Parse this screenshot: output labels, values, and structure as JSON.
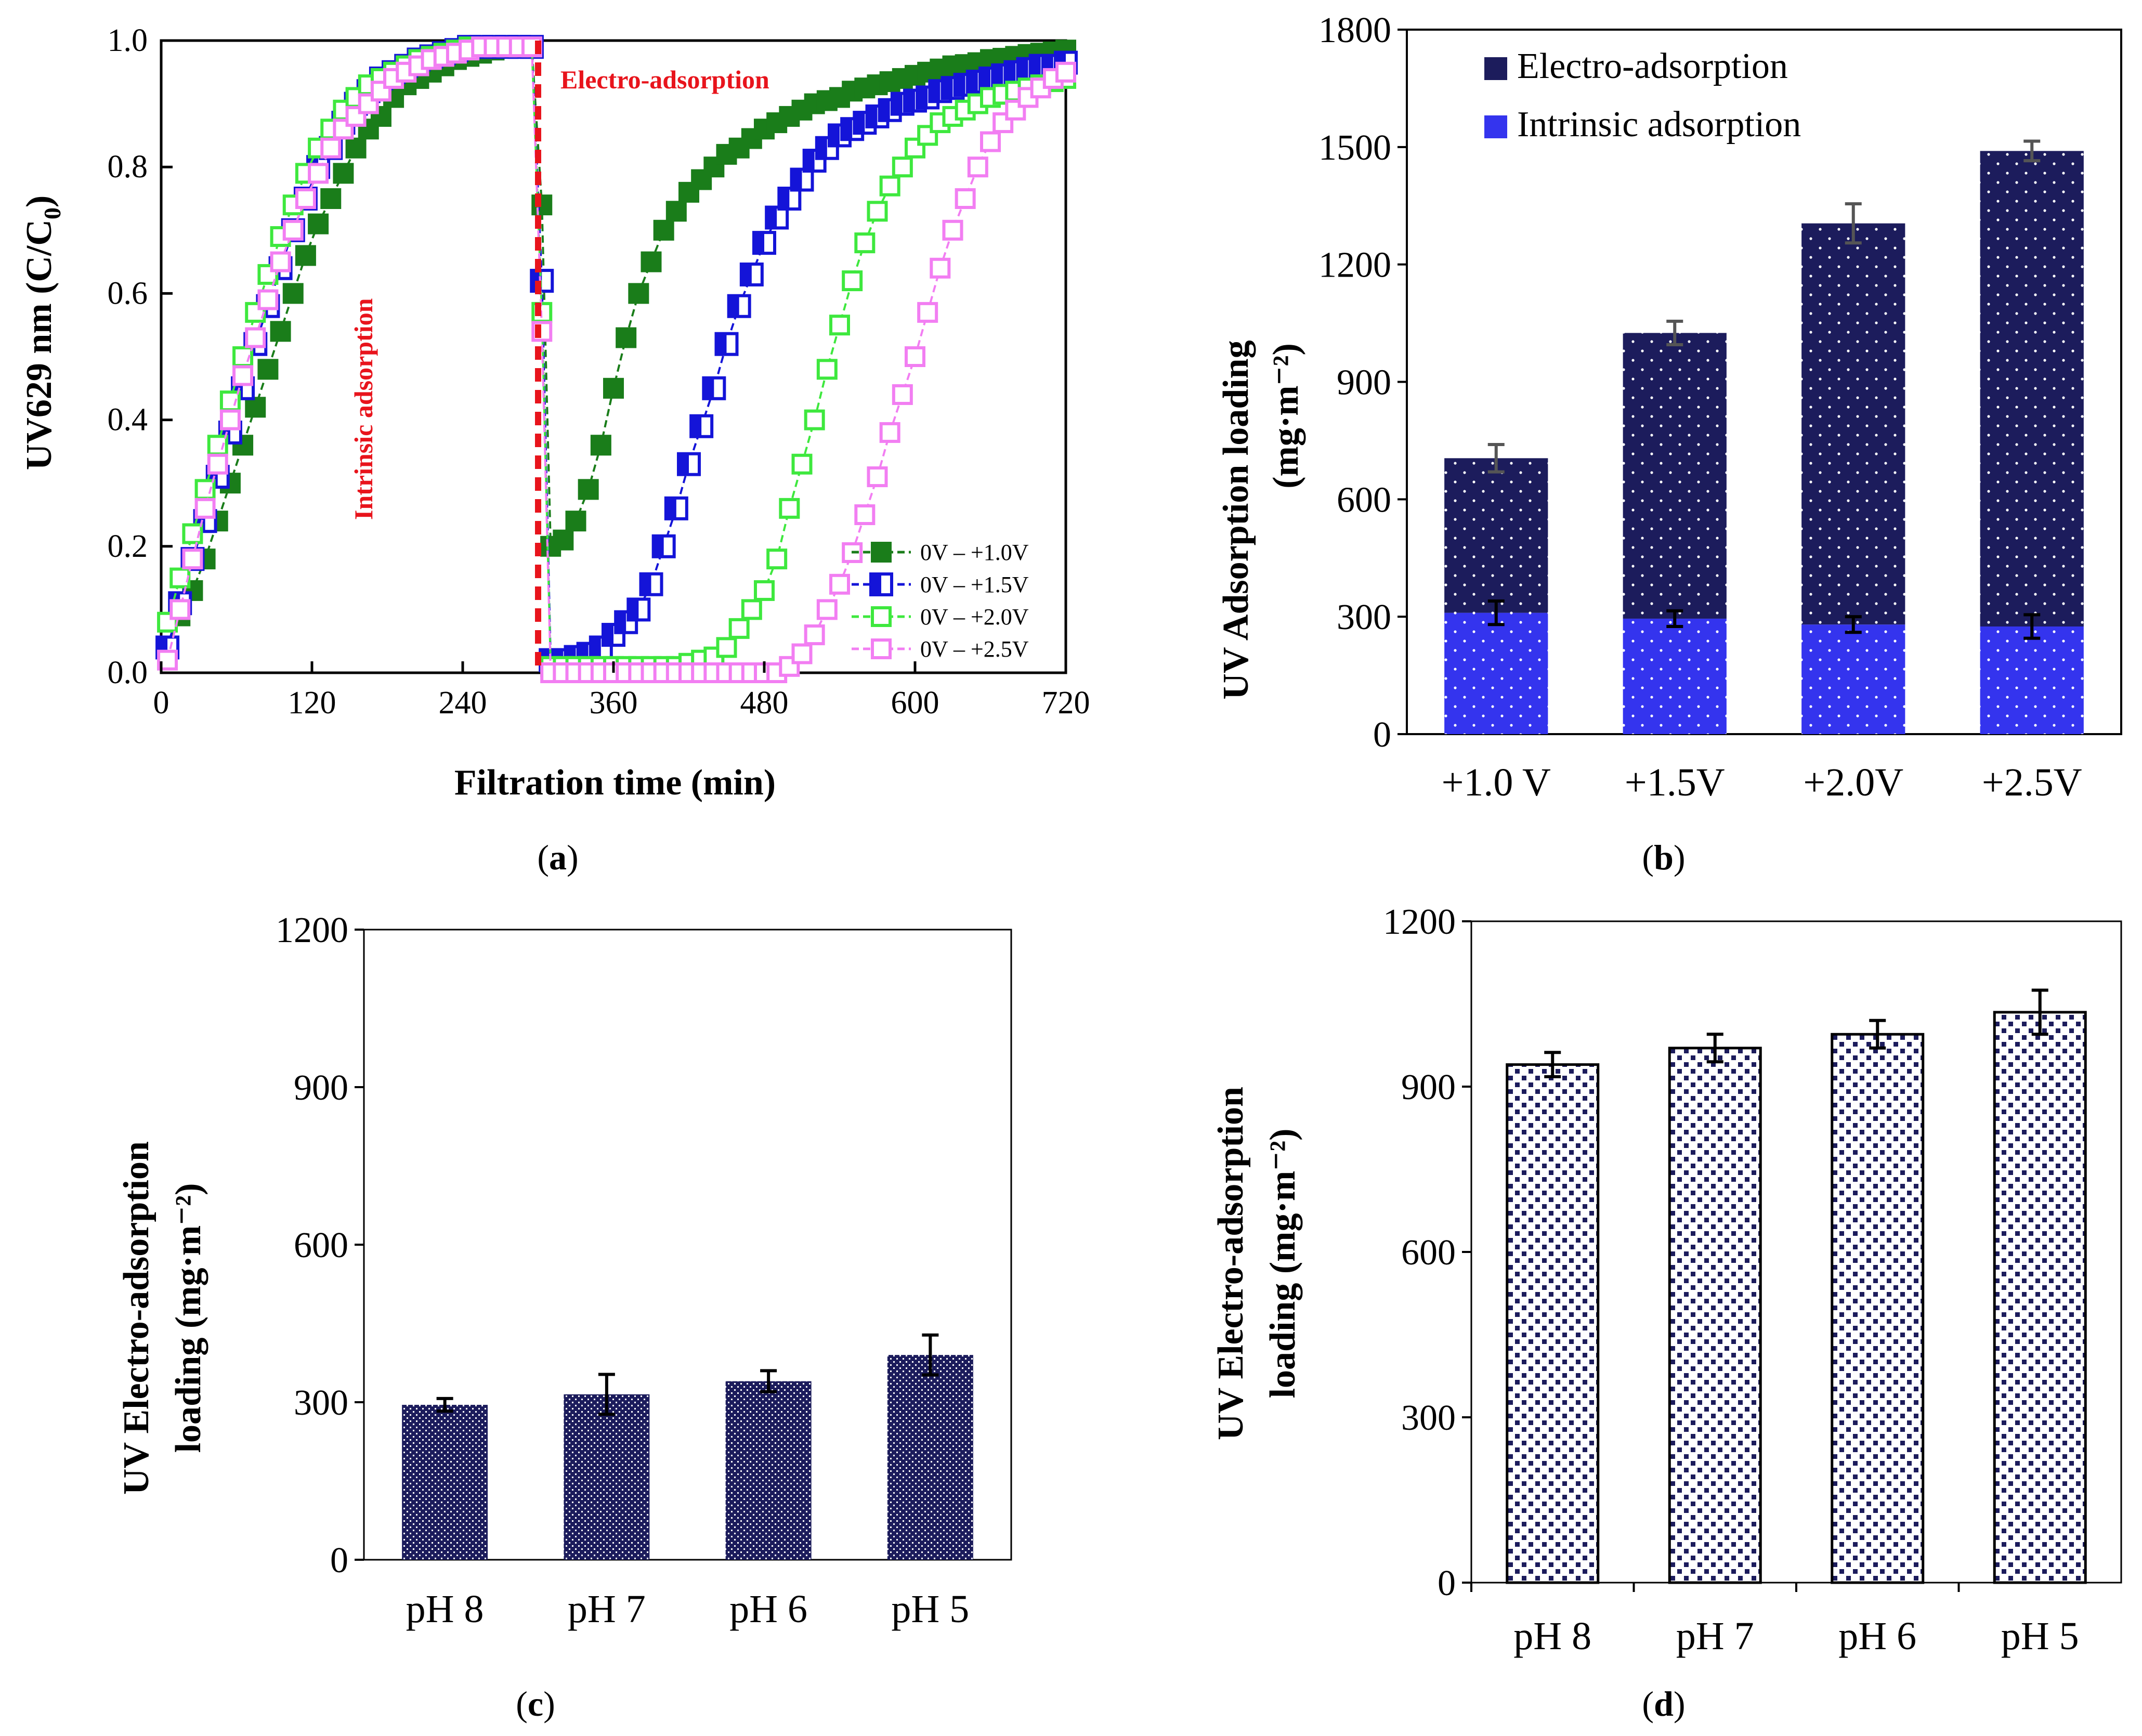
{
  "colors": {
    "dark_green": "#1a7d1a",
    "blue": "#1414d8",
    "light_green": "#3ee83e",
    "pink": "#f27ef2",
    "red_marker": "#e8141c",
    "navy": "#1c1c5c",
    "bright_blue": "#3434ee",
    "black": "#000000"
  },
  "panels": {
    "a": {
      "caption_open": "(",
      "caption_letter": "a",
      "caption_close": ")"
    },
    "b": {
      "caption_open": "(",
      "caption_letter": "b",
      "caption_close": ")"
    },
    "c": {
      "caption_open": "(",
      "caption_letter": "c",
      "caption_close": ")"
    },
    "d": {
      "caption_open": "(",
      "caption_letter": "d",
      "caption_close": ")"
    }
  },
  "chart_data": [
    {
      "id": "a",
      "type": "scatter",
      "xlabel": "Filtration time (min)",
      "ylabel": "UV629 nm (C/C0)",
      "ylabel_parts": {
        "main": "UV629 nm (C/C",
        "sub": "0",
        "close": ")"
      },
      "xlim": [
        0,
        720
      ],
      "ylim": [
        0,
        1.0
      ],
      "xticks": [
        0,
        120,
        240,
        360,
        480,
        600,
        720
      ],
      "xtick_labels": [
        "0",
        "120",
        "240",
        "360",
        "480",
        "600",
        "720"
      ],
      "yticks": [
        0,
        0.2,
        0.4,
        0.6,
        0.8,
        1.0
      ],
      "ytick_labels": [
        "0.0",
        "0.2",
        "0.4",
        "0.6",
        "0.8",
        "1.0"
      ],
      "annotations": {
        "electro": "Electro-adsorption",
        "intrinsic": "Intrinsic adsorption",
        "switch_time": 300
      },
      "legend_position": "bottom-right",
      "series": [
        {
          "name": "0V – +1.0V",
          "color_key": "dark_green",
          "marker": "filled",
          "x": [
            5,
            15,
            25,
            35,
            45,
            55,
            65,
            75,
            85,
            95,
            105,
            115,
            125,
            135,
            145,
            155,
            165,
            175,
            185,
            195,
            205,
            215,
            225,
            235,
            245,
            255,
            265,
            275,
            285,
            295,
            303,
            310,
            320,
            330,
            340,
            350,
            360,
            370,
            380,
            390,
            400,
            410,
            420,
            430,
            440,
            450,
            460,
            470,
            480,
            490,
            500,
            510,
            520,
            530,
            540,
            550,
            560,
            570,
            580,
            590,
            600,
            610,
            620,
            630,
            640,
            650,
            660,
            670,
            680,
            690,
            700,
            710,
            720
          ],
          "y": [
            0.04,
            0.09,
            0.13,
            0.18,
            0.24,
            0.3,
            0.36,
            0.42,
            0.48,
            0.54,
            0.6,
            0.66,
            0.71,
            0.75,
            0.79,
            0.83,
            0.86,
            0.88,
            0.91,
            0.93,
            0.94,
            0.95,
            0.96,
            0.97,
            0.975,
            0.98,
            0.985,
            0.99,
            0.99,
            0.99,
            0.74,
            0.2,
            0.21,
            0.24,
            0.29,
            0.36,
            0.45,
            0.53,
            0.6,
            0.65,
            0.7,
            0.73,
            0.76,
            0.78,
            0.8,
            0.82,
            0.83,
            0.845,
            0.86,
            0.87,
            0.88,
            0.89,
            0.9,
            0.905,
            0.91,
            0.92,
            0.925,
            0.93,
            0.935,
            0.94,
            0.945,
            0.95,
            0.955,
            0.96,
            0.962,
            0.965,
            0.97,
            0.972,
            0.975,
            0.978,
            0.98,
            0.982,
            0.985
          ]
        },
        {
          "name": "0V – +1.5V",
          "color_key": "blue",
          "marker": "half",
          "x": [
            5,
            15,
            25,
            35,
            45,
            55,
            65,
            75,
            85,
            95,
            105,
            115,
            125,
            135,
            145,
            155,
            165,
            175,
            185,
            195,
            205,
            215,
            225,
            235,
            245,
            255,
            265,
            275,
            285,
            295,
            303,
            310,
            320,
            330,
            340,
            350,
            360,
            370,
            380,
            390,
            400,
            410,
            420,
            430,
            440,
            450,
            460,
            470,
            480,
            490,
            500,
            510,
            520,
            530,
            540,
            550,
            560,
            570,
            580,
            590,
            600,
            610,
            620,
            630,
            640,
            650,
            660,
            670,
            680,
            690,
            700,
            710,
            720
          ],
          "y": [
            0.04,
            0.11,
            0.18,
            0.24,
            0.31,
            0.38,
            0.45,
            0.52,
            0.58,
            0.64,
            0.7,
            0.75,
            0.8,
            0.83,
            0.87,
            0.9,
            0.92,
            0.94,
            0.95,
            0.96,
            0.97,
            0.975,
            0.98,
            0.985,
            0.99,
            0.99,
            0.99,
            0.99,
            0.99,
            0.99,
            0.62,
            0.02,
            0.02,
            0.025,
            0.03,
            0.04,
            0.06,
            0.08,
            0.1,
            0.14,
            0.2,
            0.26,
            0.33,
            0.39,
            0.45,
            0.52,
            0.58,
            0.63,
            0.68,
            0.72,
            0.75,
            0.78,
            0.81,
            0.83,
            0.85,
            0.86,
            0.87,
            0.88,
            0.89,
            0.9,
            0.905,
            0.91,
            0.92,
            0.925,
            0.93,
            0.935,
            0.94,
            0.945,
            0.95,
            0.955,
            0.96,
            0.96,
            0.965
          ]
        },
        {
          "name": "0V – +2.0V",
          "color_key": "light_green",
          "marker": "open",
          "x": [
            5,
            15,
            25,
            35,
            45,
            55,
            65,
            75,
            85,
            95,
            105,
            115,
            125,
            135,
            145,
            155,
            165,
            175,
            185,
            195,
            205,
            215,
            225,
            235,
            245,
            255,
            265,
            275,
            285,
            295,
            303,
            310,
            320,
            330,
            340,
            350,
            360,
            370,
            380,
            390,
            400,
            410,
            420,
            430,
            440,
            450,
            460,
            470,
            480,
            490,
            500,
            510,
            520,
            530,
            540,
            550,
            560,
            570,
            580,
            590,
            600,
            610,
            620,
            630,
            640,
            650,
            660,
            670,
            680,
            690,
            700,
            710,
            720
          ],
          "y": [
            0.08,
            0.15,
            0.22,
            0.29,
            0.36,
            0.43,
            0.5,
            0.57,
            0.63,
            0.69,
            0.74,
            0.79,
            0.83,
            0.86,
            0.89,
            0.91,
            0.93,
            0.94,
            0.95,
            0.96,
            0.97,
            0.975,
            0.98,
            0.985,
            0.99,
            0.99,
            0.99,
            0.99,
            0.99,
            0.99,
            0.57,
            0.01,
            0.01,
            0.01,
            0.01,
            0.01,
            0.01,
            0.01,
            0.01,
            0.01,
            0.01,
            0.01,
            0.015,
            0.02,
            0.025,
            0.04,
            0.07,
            0.1,
            0.13,
            0.18,
            0.26,
            0.33,
            0.4,
            0.48,
            0.55,
            0.62,
            0.68,
            0.73,
            0.77,
            0.8,
            0.83,
            0.85,
            0.87,
            0.88,
            0.89,
            0.9,
            0.91,
            0.915,
            0.92,
            0.925,
            0.93,
            0.935,
            0.94
          ]
        },
        {
          "name": "0V – +2.5V",
          "color_key": "pink",
          "marker": "open-pink",
          "x": [
            5,
            15,
            25,
            35,
            45,
            55,
            65,
            75,
            85,
            95,
            105,
            115,
            125,
            135,
            145,
            155,
            165,
            175,
            185,
            195,
            205,
            215,
            225,
            235,
            245,
            255,
            265,
            275,
            285,
            295,
            303,
            310,
            320,
            330,
            340,
            350,
            360,
            370,
            380,
            390,
            400,
            410,
            420,
            430,
            440,
            450,
            460,
            470,
            480,
            490,
            500,
            510,
            520,
            530,
            540,
            550,
            560,
            570,
            580,
            590,
            600,
            610,
            620,
            630,
            640,
            650,
            660,
            670,
            680,
            690,
            700,
            710,
            720
          ],
          "y": [
            0.02,
            0.1,
            0.18,
            0.26,
            0.33,
            0.4,
            0.47,
            0.53,
            0.59,
            0.65,
            0.7,
            0.75,
            0.79,
            0.83,
            0.86,
            0.88,
            0.9,
            0.92,
            0.94,
            0.95,
            0.96,
            0.97,
            0.975,
            0.98,
            0.985,
            0.99,
            0.99,
            0.99,
            0.99,
            0.99,
            0.54,
            0.0,
            0.0,
            0.0,
            0.0,
            0.0,
            0.0,
            0.0,
            0.0,
            0.0,
            0.0,
            0.0,
            0.0,
            0.0,
            0.0,
            0.0,
            0.0,
            0.0,
            0.0,
            0.0,
            0.01,
            0.03,
            0.06,
            0.1,
            0.14,
            0.19,
            0.25,
            0.31,
            0.38,
            0.44,
            0.5,
            0.57,
            0.64,
            0.7,
            0.75,
            0.8,
            0.84,
            0.87,
            0.89,
            0.91,
            0.925,
            0.94,
            0.95
          ]
        }
      ]
    },
    {
      "id": "b",
      "type": "bar",
      "stacked": true,
      "ylabel_line1": "UV Adsorption loading",
      "ylabel_line2": "(mg·m⁻²)",
      "categories": [
        "+1.0 V",
        "+1.5V",
        "+2.0V",
        "+2.5V"
      ],
      "ylim": [
        0,
        1800
      ],
      "yticks": [
        0,
        300,
        600,
        900,
        1200,
        1500,
        1800
      ],
      "ytick_labels": [
        "0",
        "300",
        "600",
        "900",
        "1200",
        "1500",
        "1800"
      ],
      "legend_position": "top-left",
      "series": [
        {
          "name": "Intrinsic adsorption",
          "color_key": "bright_blue",
          "values": [
            310,
            295,
            280,
            275
          ],
          "errors": [
            30,
            20,
            20,
            30
          ]
        },
        {
          "name": "Electro-adsorption",
          "color_key": "navy",
          "values": [
            395,
            730,
            1025,
            1215
          ],
          "errors": [
            35,
            30,
            50,
            25
          ]
        }
      ]
    },
    {
      "id": "c",
      "type": "bar",
      "ylabel_line1": "UV Electro-adsorption",
      "ylabel_line2": "loading (mg·m⁻²)",
      "categories": [
        "pH 8",
        "pH 7",
        "pH 6",
        "pH 5"
      ],
      "values": [
        295,
        315,
        340,
        390
      ],
      "errors": [
        12,
        38,
        20,
        38
      ],
      "ylim": [
        0,
        1200
      ],
      "yticks": [
        0,
        300,
        600,
        900,
        1200
      ],
      "ytick_labels": [
        "0",
        "300",
        "600",
        "900",
        "1200"
      ],
      "color_key": "navy"
    },
    {
      "id": "d",
      "type": "bar",
      "ylabel_line1": "UV Electro-adsorption",
      "ylabel_line2": "loading (mg·m⁻²)",
      "categories": [
        "pH 8",
        "pH 7",
        "pH 6",
        "pH 5"
      ],
      "values": [
        940,
        970,
        995,
        1035
      ],
      "errors": [
        22,
        25,
        25,
        40
      ],
      "ylim": [
        0,
        1200
      ],
      "yticks": [
        0,
        300,
        600,
        900,
        1200
      ],
      "ytick_labels": [
        "0",
        "300",
        "600",
        "900",
        "1200"
      ],
      "color_key": "navy"
    }
  ]
}
